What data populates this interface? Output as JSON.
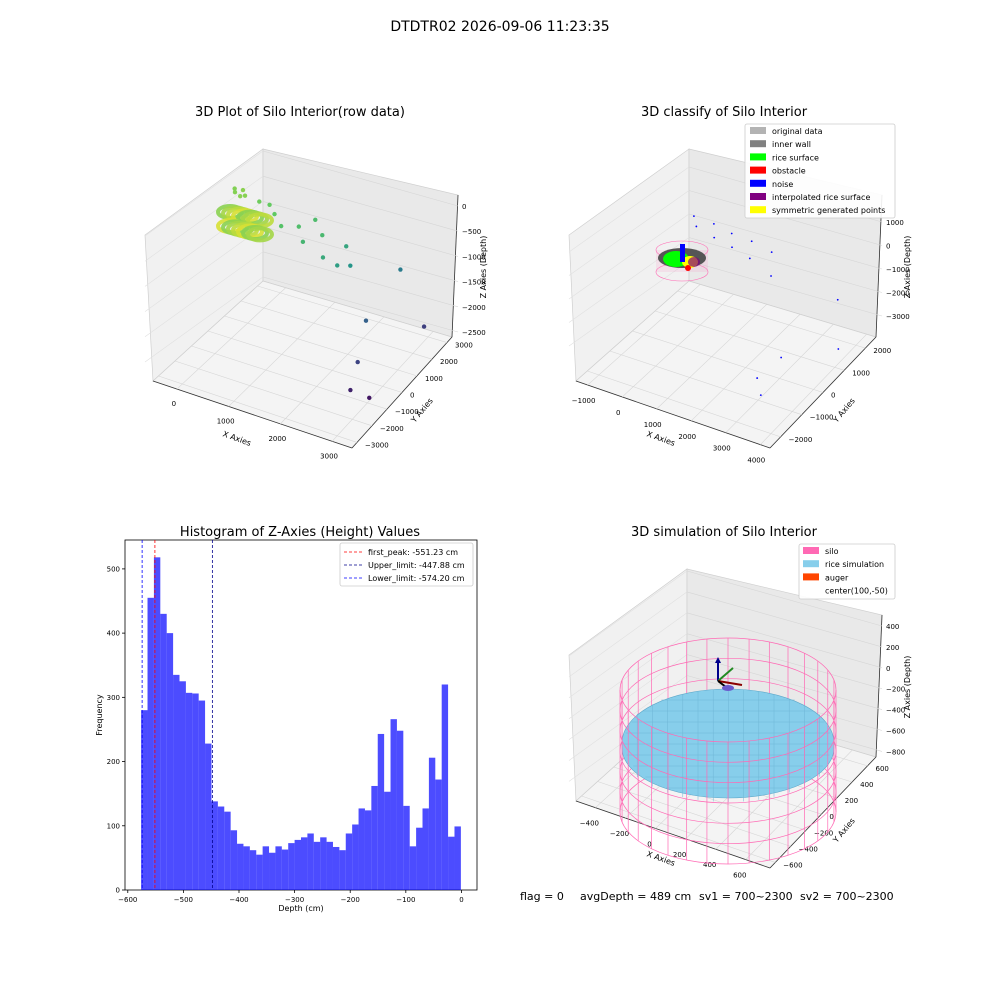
{
  "figure": {
    "suptitle": "DTDTR02 2026-09-06 11:23:35",
    "status": {
      "flag": "flag = 0",
      "avg_depth": "avgDepth = 489 cm",
      "sv1": "sv1 = 700~2300",
      "sv2": "sv2 = 700~2300"
    }
  },
  "chart_data": [
    {
      "type": "scatter",
      "title": "3D Plot of Silo Interior(row data)",
      "xlabel": "X Axies",
      "ylabel": "Y Axies",
      "zlabel": "Z Axies (Depth)",
      "x_ticks": [
        "0",
        "1000",
        "2000",
        "3000"
      ],
      "y_ticks": [
        "−3000",
        "−2000",
        "−1000",
        "0",
        "1000",
        "2000",
        "3000"
      ],
      "z_ticks": [
        "0",
        "−500",
        "−1000",
        "−1500",
        "−2000",
        "−2500"
      ],
      "xlim": [
        -700,
        3700
      ],
      "ylim": [
        -3300,
        3300
      ],
      "zlim": [
        -2900,
        0
      ],
      "colormap": "viridis",
      "points": [
        {
          "x": -50,
          "y": -50,
          "z": -550
        },
        {
          "x": 150,
          "y": 0,
          "z": -540
        },
        {
          "x": 50,
          "y": 150,
          "z": -520
        },
        {
          "x": -120,
          "y": 120,
          "z": -560
        },
        {
          "x": 100,
          "y": -150,
          "z": -530
        },
        {
          "x": 350,
          "y": 300,
          "z": -650
        },
        {
          "x": 500,
          "y": 500,
          "z": -700
        },
        {
          "x": 700,
          "y": 250,
          "z": -720
        },
        {
          "x": 900,
          "y": 100,
          "z": -820
        },
        {
          "x": 1100,
          "y": 600,
          "z": -880
        },
        {
          "x": 1300,
          "y": 300,
          "z": -1000
        },
        {
          "x": 1500,
          "y": 900,
          "z": -950
        },
        {
          "x": 1700,
          "y": 400,
          "z": -1150
        },
        {
          "x": 1200,
          "y": 1300,
          "z": -900
        },
        {
          "x": 1900,
          "y": 700,
          "z": -1300
        },
        {
          "x": 1800,
          "y": 1500,
          "z": -1200
        },
        {
          "x": 2000,
          "y": 1200,
          "z": -1400
        },
        {
          "x": 2600,
          "y": 500,
          "z": -2000
        },
        {
          "x": 2500,
          "y": 2800,
          "z": -1700
        },
        {
          "x": 3200,
          "y": 2300,
          "z": -2350
        },
        {
          "x": 2900,
          "y": -800,
          "z": -2300
        },
        {
          "x": 3000,
          "y": -1500,
          "z": -2600
        },
        {
          "x": 3300,
          "y": -1200,
          "z": -2700
        }
      ]
    },
    {
      "type": "scatter",
      "title": "3D classify of Silo Interior",
      "xlabel": "X Axies",
      "ylabel": "Y Axies",
      "zlabel": "Z Axies (Depth)",
      "x_ticks": [
        "−1000",
        "0",
        "1000",
        "2000",
        "3000",
        "4000"
      ],
      "y_ticks": [
        "−2000",
        "−1000",
        "0",
        "1000",
        "2000"
      ],
      "z_ticks": [
        "1000",
        "0",
        "−1000",
        "−2000",
        "−3000"
      ],
      "xlim": [
        -1400,
        4400
      ],
      "ylim": [
        -2600,
        2600
      ],
      "zlim": [
        -3600,
        1200
      ],
      "legend": [
        {
          "label": "original data",
          "color": "#b3b3b3"
        },
        {
          "label": "inner wall",
          "color": "#808080"
        },
        {
          "label": "rice surface",
          "color": "#00ff00"
        },
        {
          "label": "obstacle",
          "color": "#ff0000"
        },
        {
          "label": "noise",
          "color": "#0000ff"
        },
        {
          "label": "interpolated rice surface",
          "color": "#800080"
        },
        {
          "label": "symmetric generated points",
          "color": "#ffff00"
        }
      ],
      "noise_points": [
        {
          "x": 300,
          "y": 300,
          "z": -200
        },
        {
          "x": 500,
          "y": 100,
          "z": -300
        },
        {
          "x": 700,
          "y": 600,
          "z": -400
        },
        {
          "x": 900,
          "y": 300,
          "z": -550
        },
        {
          "x": 1100,
          "y": 800,
          "z": -600
        },
        {
          "x": 1300,
          "y": 500,
          "z": -750
        },
        {
          "x": 1500,
          "y": 1100,
          "z": -800
        },
        {
          "x": 1700,
          "y": 700,
          "z": -1000
        },
        {
          "x": 1900,
          "y": 1400,
          "z": -1100
        },
        {
          "x": 2200,
          "y": 900,
          "z": -1400
        },
        {
          "x": 3600,
          "y": 1800,
          "z": -1900
        },
        {
          "x": 3200,
          "y": -200,
          "z": -2800
        },
        {
          "x": 3000,
          "y": -1000,
          "z": -3100
        },
        {
          "x": 3300,
          "y": -1300,
          "z": -3300
        },
        {
          "x": 4000,
          "y": 1200,
          "z": -2900
        }
      ]
    },
    {
      "type": "bar",
      "title": "Histogram of Z-Axies (Height) Values",
      "xlabel": "Depth (cm)",
      "ylabel": "Frequency",
      "xlim": [
        -605,
        28
      ],
      "ylim": [
        0,
        545
      ],
      "x_ticks": [
        -600,
        -500,
        -400,
        -300,
        -200,
        -100,
        0
      ],
      "x_tick_labels": [
        "−600",
        "−500",
        "−400",
        "−300",
        "−200",
        "−100",
        "0"
      ],
      "y_ticks": [
        0,
        100,
        200,
        300,
        400,
        500
      ],
      "y_tick_labels": [
        "0",
        "100",
        "200",
        "300",
        "400",
        "500"
      ],
      "bin_start": -576,
      "bin_width": 11.5,
      "values": [
        280,
        455,
        518,
        430,
        400,
        335,
        325,
        307,
        306,
        295,
        228,
        138,
        130,
        122,
        93,
        72,
        68,
        62,
        55,
        68,
        58,
        68,
        63,
        73,
        78,
        82,
        88,
        75,
        82,
        75,
        67,
        62,
        88,
        102,
        127,
        124,
        162,
        243,
        153,
        266,
        248,
        131,
        68,
        97,
        127,
        206,
        172,
        320,
        83,
        99
      ],
      "color": "#0000ff",
      "lines": [
        {
          "label": "first_peak: -551.23 cm",
          "value": -551.23,
          "color": "#ff0000"
        },
        {
          "label": "Upper_limit: -447.88 cm",
          "value": -447.88,
          "color": "#00008b"
        },
        {
          "label": "Lower_limit: -574.20 cm",
          "value": -574.2,
          "color": "#0000ff"
        }
      ]
    },
    {
      "type": "scatter",
      "title": "3D simulation of Silo Interior",
      "xlabel": "X Axies",
      "ylabel": "Y Axies",
      "zlabel": "Z Axies (Depth)",
      "x_ticks": [
        "−400",
        "−200",
        "0",
        "200",
        "400",
        "600"
      ],
      "y_ticks": [
        "−600",
        "−400",
        "−200",
        "0",
        "200",
        "400",
        "600"
      ],
      "z_ticks": [
        "400",
        "200",
        "0",
        "−200",
        "−400",
        "−600",
        "−800"
      ],
      "xlim": [
        -560,
        760
      ],
      "ylim": [
        -760,
        560
      ],
      "zlim": [
        -920,
        480
      ],
      "legend": [
        {
          "label": "silo",
          "color": "#ff69b4"
        },
        {
          "label": "rice simulation",
          "color": "#87ceeb"
        },
        {
          "label": "auger",
          "color": "#ff4500"
        },
        {
          "label": "center(100,-50)",
          "color": ""
        }
      ]
    }
  ]
}
